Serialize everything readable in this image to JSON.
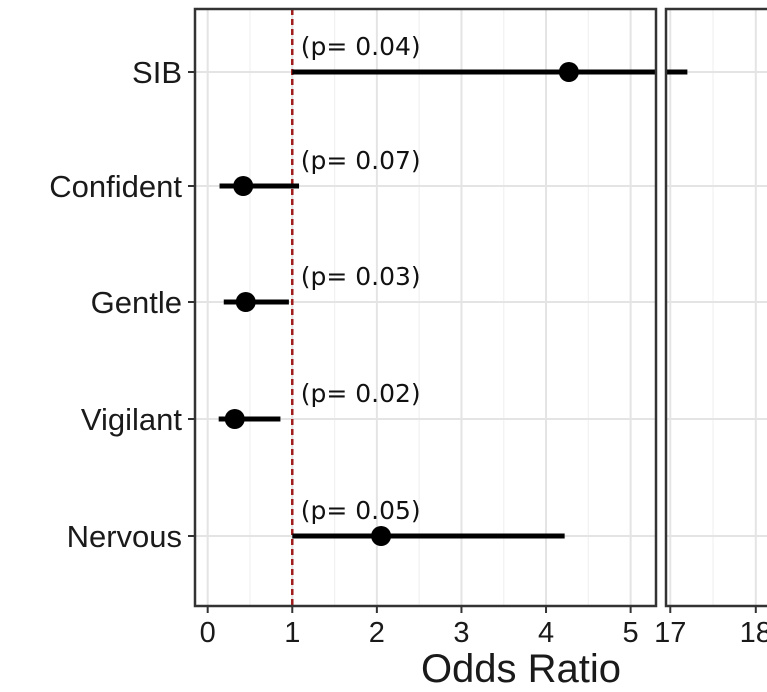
{
  "chart_data": {
    "type": "forest",
    "xlabel": "Odds Ratio",
    "ylabel": "",
    "categories": [
      "SIB",
      "Confident",
      "Gentle",
      "Vigilant",
      "Nervous"
    ],
    "estimates": [
      4.27,
      0.42,
      0.45,
      0.32,
      2.05
    ],
    "ci_low": [
      1.0,
      0.14,
      0.19,
      0.13,
      1.0
    ],
    "ci_high": [
      17.2,
      1.08,
      0.96,
      0.86,
      4.22
    ],
    "p_labels": [
      "(p= 0.04)",
      "(p= 0.07)",
      "(p= 0.03)",
      "(p= 0.02)",
      "(p= 0.05)"
    ],
    "reference_line": 1,
    "reference_color": "#a01c1c",
    "panels": [
      {
        "xlim": [
          -0.15,
          5.3
        ],
        "ticks": [
          0,
          1,
          2,
          3,
          4,
          5
        ],
        "tick_labels": [
          "0",
          "1",
          "2",
          "3",
          "4",
          "5"
        ]
      },
      {
        "xlim": [
          16.95,
          18.4
        ],
        "ticks": [
          17,
          18
        ],
        "tick_labels": [
          "17",
          "18"
        ]
      }
    ],
    "grid": true
  }
}
